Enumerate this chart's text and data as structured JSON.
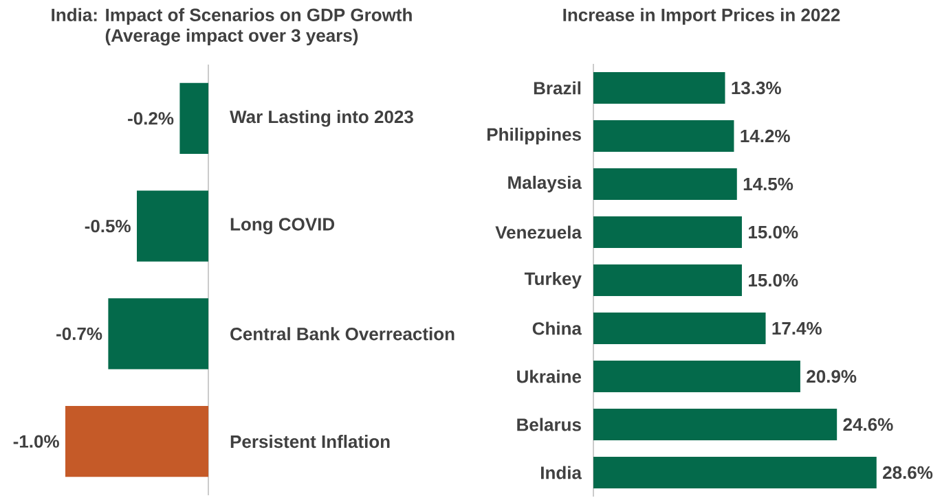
{
  "chart_data": [
    {
      "type": "bar",
      "orientation": "horizontal",
      "title": "India: Impact of Scenarios on GDP Growth",
      "subtitle": "(Average impact over 3 years)",
      "categories": [
        "War Lasting into 2023",
        "Long COVID",
        "Central Bank Overreaction",
        "Persistent Inflation"
      ],
      "values": [
        -0.2,
        -0.5,
        -0.7,
        -1.0
      ],
      "value_labels": [
        "-0.2%",
        "-0.5%",
        "-0.7%",
        "-1.0%"
      ],
      "colors": [
        "#046a4b",
        "#046a4b",
        "#046a4b",
        "#c55a28"
      ],
      "tick_labels": "y"
    },
    {
      "type": "bar",
      "orientation": "horizontal",
      "title": "Increase in Import Prices in 2022",
      "categories": [
        "Brazil",
        "Philippines",
        "Malaysia",
        "Venezuela",
        "Turkey",
        "China",
        "Ukraine",
        "Belarus",
        "India"
      ],
      "values": [
        13.3,
        14.2,
        14.5,
        15.0,
        15.0,
        17.4,
        20.9,
        24.6,
        28.6
      ],
      "value_labels": [
        "13.3%",
        "14.2%",
        "14.5%",
        "15.0%",
        "15.0%",
        "17.4%",
        "20.9%",
        "24.6%",
        "28.6%"
      ],
      "colors": [
        "#046a4b",
        "#046a4b",
        "#046a4b",
        "#046a4b",
        "#046a4b",
        "#046a4b",
        "#046a4b",
        "#046a4b",
        "#046a4b"
      ],
      "tick_labels": "y"
    }
  ]
}
